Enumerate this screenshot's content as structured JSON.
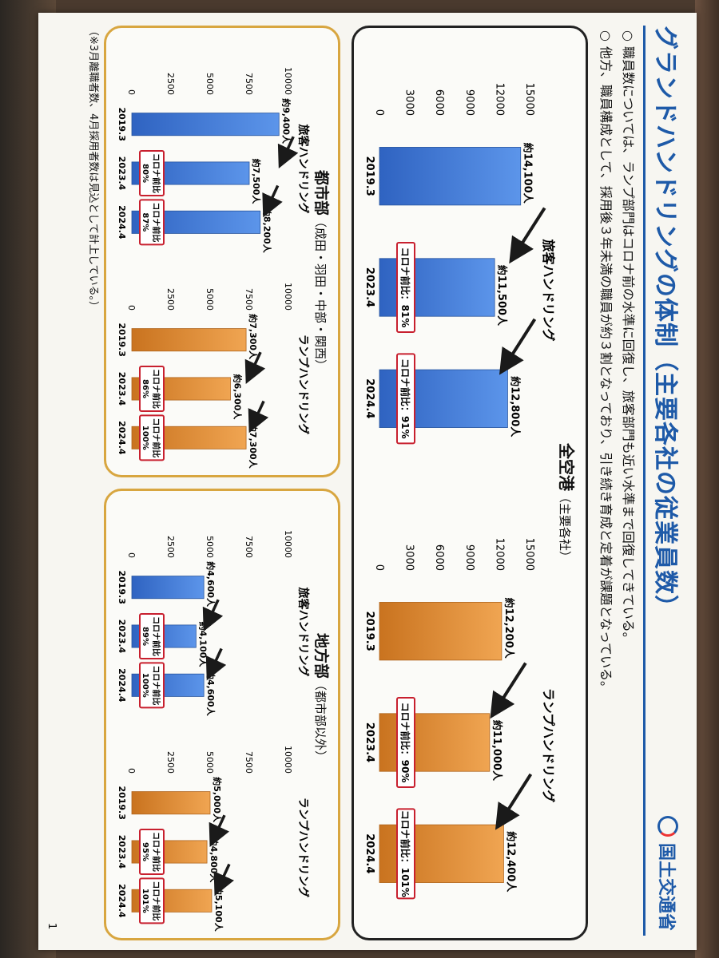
{
  "header": {
    "title": "グランドハンドリングの体制（主要各社の従業員数）",
    "logo_text": "国土交通省",
    "bullets": [
      {
        "marker": "○",
        "text": "職員数については、ランプ部門はコロナ前の水準に回復し、旅客部門も近い水準まで回復してきている。"
      },
      {
        "marker": "○",
        "text": "他方、職員構成として、採用後３年未満の職員が約３割となっており、引き続き育成と定着が課題となっている。"
      }
    ]
  },
  "panels": {
    "all": {
      "title": "全空港",
      "subtitle": "（主要各社）"
    },
    "metro": {
      "title": "都市部",
      "subtitle": "（成田・羽田・中部・関西）"
    },
    "local": {
      "title": "地方部",
      "subtitle": "（都市部以外）"
    }
  },
  "colors": {
    "passenger": "#3d7ad6",
    "ramp": "#e08d3c",
    "badge_border": "#c8202f",
    "arrow": "#1a1a1a"
  },
  "chart_data": [
    {
      "type": "bar",
      "panel": "all",
      "title": "旅客ハンドリング",
      "categories": [
        "2019.3",
        "2023.4",
        "2024.4"
      ],
      "values": [
        14100,
        11500,
        12800
      ],
      "value_labels": [
        "約14,100人",
        "約11,500人",
        "約12,800人"
      ],
      "ticks": [
        "0",
        "3000",
        "6000",
        "9000",
        "12000",
        "15000"
      ],
      "ylim": [
        0,
        15000
      ],
      "badges": [
        "",
        "コロナ前比：81%",
        "コロナ前比：91%"
      ],
      "color": "passenger"
    },
    {
      "type": "bar",
      "panel": "all",
      "title": "ランプハンドリング",
      "categories": [
        "2019.3",
        "2023.4",
        "2024.4"
      ],
      "values": [
        12200,
        11000,
        12400
      ],
      "value_labels": [
        "約12,200人",
        "約11,000人",
        "約12,400人"
      ],
      "ticks": [
        "0",
        "3000",
        "6000",
        "9000",
        "12000",
        "15000"
      ],
      "ylim": [
        0,
        15000
      ],
      "badges": [
        "",
        "コロナ前比：90%",
        "コロナ前比：101%"
      ],
      "color": "ramp"
    },
    {
      "type": "bar",
      "panel": "metro",
      "title": "旅客ハンドリング",
      "categories": [
        "2019.3",
        "2023.4",
        "2024.4"
      ],
      "values": [
        9400,
        7500,
        8200
      ],
      "value_labels": [
        "約9,400人",
        "約7,500人",
        "約8,200人"
      ],
      "ticks": [
        "0",
        "2500",
        "5000",
        "7500",
        "10000"
      ],
      "ylim": [
        0,
        10000
      ],
      "badges": [
        "",
        "コロナ前比 80%",
        "コロナ前比 87%"
      ],
      "color": "passenger"
    },
    {
      "type": "bar",
      "panel": "metro",
      "title": "ランプハンドリング",
      "categories": [
        "2019.3",
        "2023.4",
        "2024.4"
      ],
      "values": [
        7300,
        6300,
        7300
      ],
      "value_labels": [
        "約7,300人",
        "約6,300人",
        "約7,300人"
      ],
      "ticks": [
        "0",
        "2500",
        "5000",
        "7500",
        "10000"
      ],
      "ylim": [
        0,
        10000
      ],
      "badges": [
        "",
        "コロナ前比 86%",
        "コロナ前比 100%"
      ],
      "color": "ramp"
    },
    {
      "type": "bar",
      "panel": "local",
      "title": "旅客ハンドリング",
      "categories": [
        "2019.3",
        "2023.4",
        "2024.4"
      ],
      "values": [
        4600,
        4100,
        4600
      ],
      "value_labels": [
        "約4,600人",
        "約4,100人",
        "約4,600人"
      ],
      "ticks": [
        "0",
        "2500",
        "5000",
        "7500",
        "10000"
      ],
      "ylim": [
        0,
        10000
      ],
      "badges": [
        "",
        "コロナ前比 89%",
        "コロナ前比 100%"
      ],
      "color": "passenger"
    },
    {
      "type": "bar",
      "panel": "local",
      "title": "ランプハンドリング",
      "categories": [
        "2019.3",
        "2023.4",
        "2024.4"
      ],
      "values": [
        5000,
        4800,
        5100
      ],
      "value_labels": [
        "約5,000人",
        "約4,800人",
        "約5,100人"
      ],
      "ticks": [
        "0",
        "2500",
        "5000",
        "7500",
        "10000"
      ],
      "ylim": [
        0,
        10000
      ],
      "badges": [
        "",
        "コロナ前比 95%",
        "コロナ前比 101%"
      ],
      "color": "ramp"
    }
  ],
  "footer": {
    "note": "（※3月離職者数、4月採用者数は見込として計上している。）",
    "page_number": "1"
  }
}
